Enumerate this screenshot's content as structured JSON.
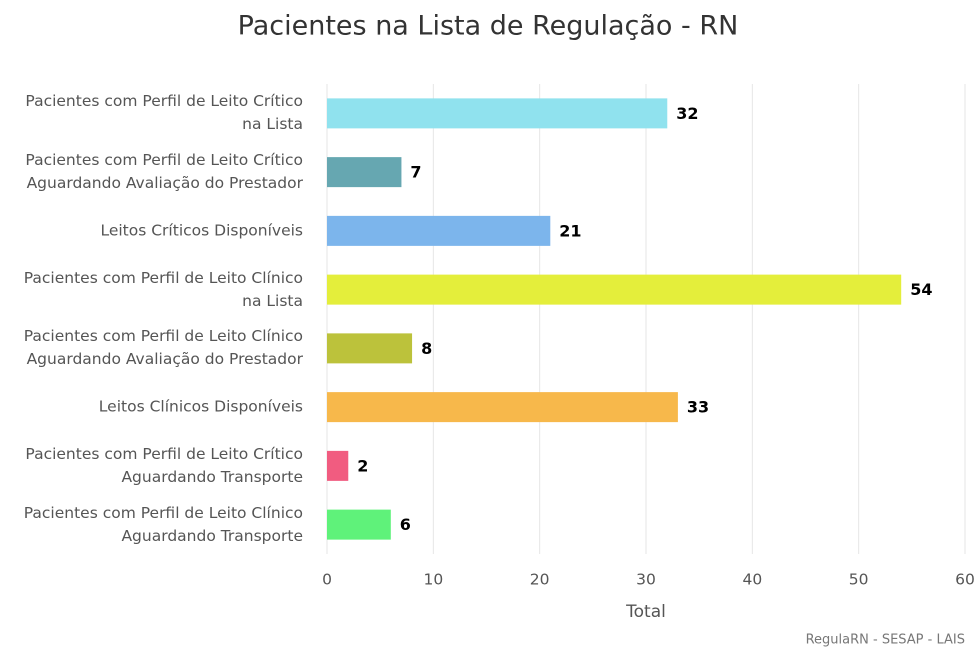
{
  "chart_data": {
    "type": "bar",
    "orientation": "horizontal",
    "title": "Pacientes na Lista de Regulação - RN",
    "categories": [
      "Pacientes com Perfil de Leito Crítico na Lista",
      "Pacientes com Perfil de Leito Crítico Aguardando Avaliação do Prestador",
      "Leitos Críticos Disponíveis",
      "Pacientes com Perfil de Leito Clínico na Lista",
      "Pacientes com Perfil de Leito Clínico Aguardando Avaliação do Prestador",
      "Leitos Clínicos Disponíveis",
      "Pacientes com Perfil de Leito Crítico Aguardando Transporte",
      "Pacientes com Perfil de Leito Clínico Aguardando Transporte"
    ],
    "values": [
      32,
      7,
      21,
      54,
      8,
      33,
      2,
      6
    ],
    "colors": [
      "#90e2ee",
      "#66a7b1",
      "#7cb5ec",
      "#e4ee3b",
      "#bcc23b",
      "#f7b84b",
      "#f15c80",
      "#5ff27a"
    ],
    "xlabel": "Total",
    "xlim": [
      0,
      60
    ],
    "xticks": [
      0,
      10,
      20,
      30,
      40,
      50,
      60
    ],
    "grid": true,
    "credits": "RegulaRN - SESAP - LAIS"
  }
}
